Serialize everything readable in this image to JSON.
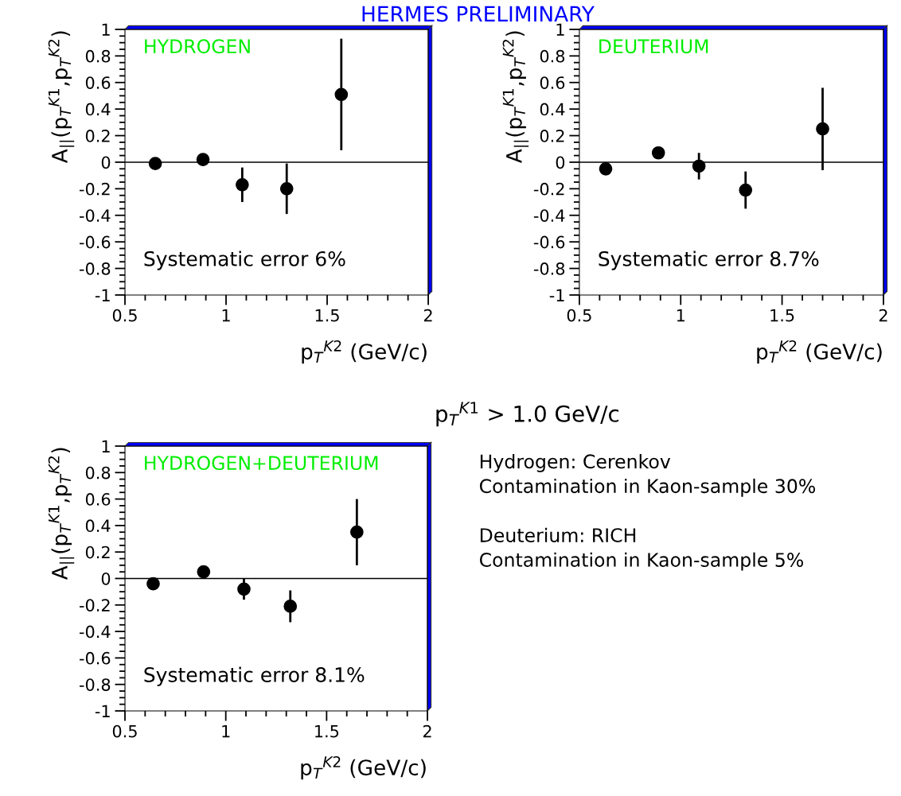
{
  "chart_data": [
    {
      "type": "scatter",
      "title": "HERMES PRELIMINARY",
      "xlabel": "p$_{T}$$^{K2}$ (GeV/c)",
      "ylabel": "A$_{||}$(p$_{T}$$^{K1}$,p$_{T}$$^{K2}$)",
      "annotations": [
        "HYDROGEN",
        "Systematic error 6%"
      ],
      "series": [
        {
          "color": "#000000",
          "x": [
            0.65,
            0.886,
            1.08,
            1.3,
            1.57
          ],
          "values": [
            -0.01,
            0.02,
            -0.17,
            -0.2,
            0.51
          ],
          "errors": [
            null,
            0.04,
            0.13,
            0.19,
            0.42
          ]
        }
      ],
      "xlim": [
        0.5,
        2
      ],
      "xticks": [
        0.5,
        1,
        1.5,
        2
      ],
      "ylim": [
        -1,
        1
      ],
      "yticks": [
        -1,
        -0.8,
        -0.6,
        -0.4,
        -0.2,
        0,
        0.2,
        0.4,
        0.6,
        0.8,
        1
      ],
      "ref_lines": [
        {
          "axis": "y",
          "value": 0,
          "color": "#000000"
        }
      ],
      "marker": "circle",
      "grid": false,
      "legend": false
    },
    {
      "type": "scatter",
      "xlabel": "p$_{T}$$^{K2}$ (GeV/c)",
      "ylabel": "A$_{||}$(p$_{T}$$^{K1}$,p$_{T}$$^{K2}$)",
      "annotations": [
        "DEUTERIUM",
        "Systematic error 8.7%"
      ],
      "series": [
        {
          "color": "#000000",
          "x": [
            0.63,
            0.89,
            1.09,
            1.32,
            1.7
          ],
          "values": [
            -0.05,
            0.07,
            -0.03,
            -0.21,
            0.25
          ],
          "errors": [
            null,
            null,
            0.1,
            0.14,
            0.31
          ]
        }
      ],
      "xlim": [
        0.5,
        2
      ],
      "xticks": [
        0.5,
        1,
        1.5,
        2
      ],
      "ylim": [
        -1,
        1
      ],
      "yticks": [
        -1,
        -0.8,
        -0.6,
        -0.4,
        -0.2,
        0,
        0.2,
        0.4,
        0.6,
        0.8,
        1
      ],
      "ref_lines": [
        {
          "axis": "y",
          "value": 0,
          "color": "#000000"
        }
      ],
      "marker": "circle",
      "grid": false,
      "legend": false
    },
    {
      "type": "scatter",
      "xlabel": "p$_{T}$$^{K2}$ (GeV/c)",
      "ylabel": "A$_{||}$(p$_{T}$$^{K1}$,p$_{T}$$^{K2}$)",
      "annotations": [
        "HYDROGEN+DEUTERIUM",
        "Systematic error 8.1%",
        "p$_{T}$$^{K1}$ > 1.0 GeV/c",
        "Hydrogen: Cerenkov\nContamination in Kaon-sample 30%\n\nDeuterium: RICH\nContamination in Kaon-sample 5%"
      ],
      "series": [
        {
          "color": "#000000",
          "x": [
            0.64,
            0.89,
            1.09,
            1.32,
            1.65
          ],
          "values": [
            -0.04,
            0.05,
            -0.08,
            -0.21,
            0.35
          ],
          "errors": [
            null,
            null,
            0.08,
            0.12,
            0.25
          ]
        }
      ],
      "xlim": [
        0.5,
        2
      ],
      "xticks": [
        0.5,
        1,
        1.5,
        2
      ],
      "ylim": [
        -1,
        1
      ],
      "yticks": [
        -1,
        -0.8,
        -0.6,
        -0.4,
        -0.2,
        0,
        0.2,
        0.4,
        0.6,
        0.8,
        1
      ],
      "ref_lines": [
        {
          "axis": "y",
          "value": 0,
          "color": "#000000"
        }
      ],
      "marker": "circle",
      "grid": false,
      "legend": false
    }
  ]
}
